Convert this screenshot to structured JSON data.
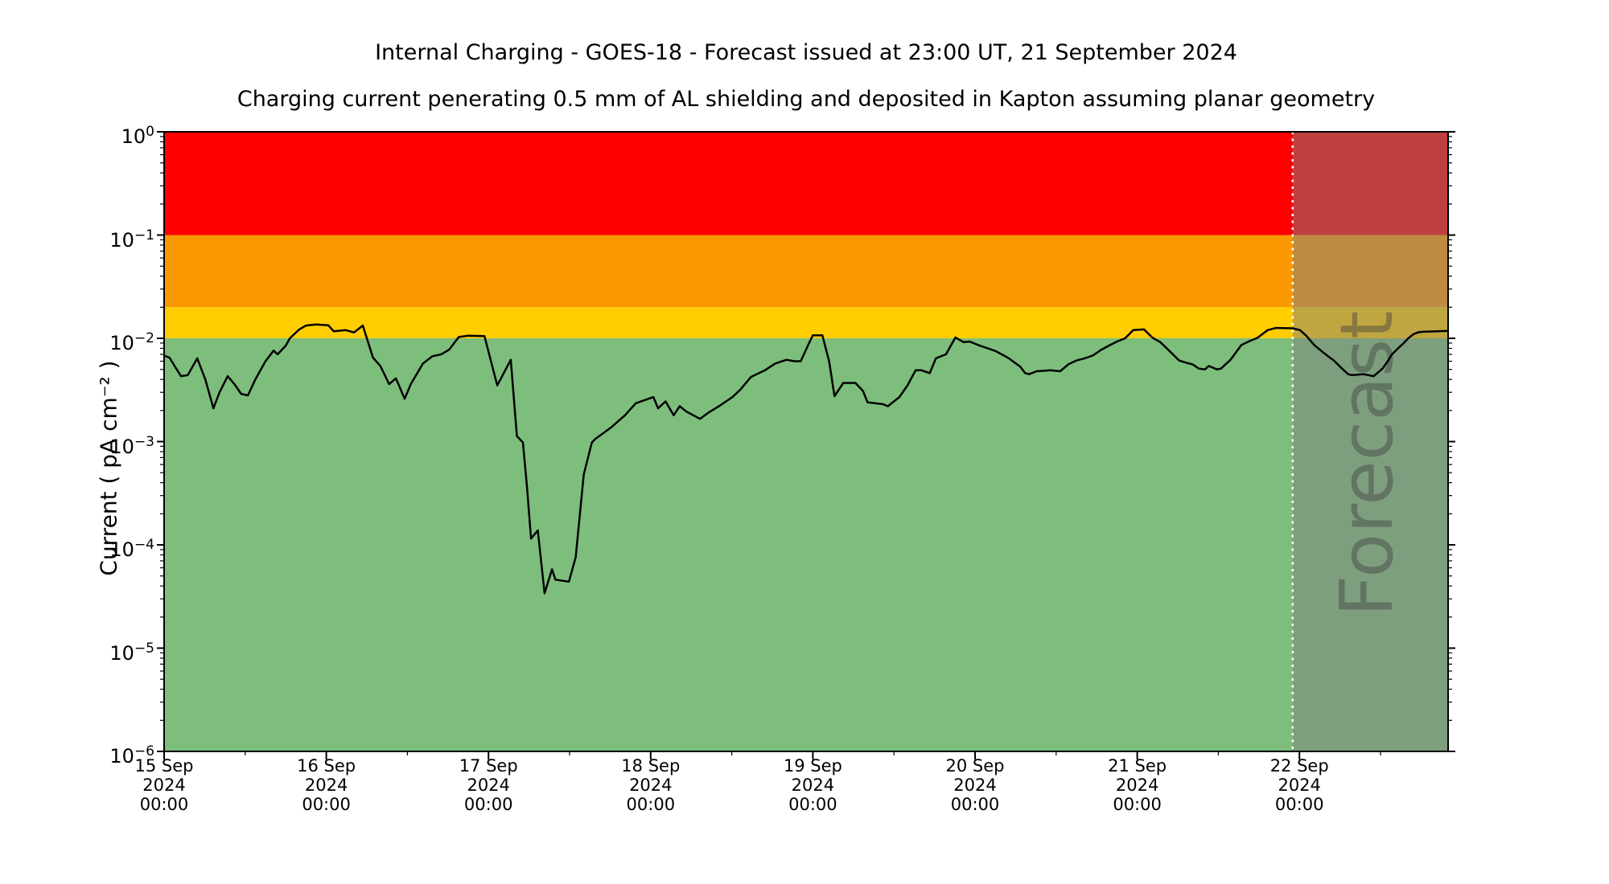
{
  "chart_data": {
    "type": "line",
    "title": "Internal Charging - GOES-18 - Forecast issued at 23:00 UT, 21 September 2024",
    "subtitle": "Charging current penerating 0.5 mm of AL shielding and deposited in Kapton assuming planar geometry",
    "ylabel": "Current ( pA cm⁻² )",
    "y_axis": {
      "scale": "log",
      "min": 1e-06,
      "max": 1,
      "tick_exponents": [
        "0",
        "−1",
        "−2",
        "−3",
        "−4",
        "−5",
        "−6"
      ]
    },
    "x_axis": {
      "hours_total": 190,
      "major_tick_hours": 24,
      "minor_tick_hours": 12,
      "tick_labels": [
        {
          "day": "15 Sep",
          "year": "2024",
          "time": "00:00"
        },
        {
          "day": "16 Sep",
          "year": "2024",
          "time": "00:00"
        },
        {
          "day": "17 Sep",
          "year": "2024",
          "time": "00:00"
        },
        {
          "day": "18 Sep",
          "year": "2024",
          "time": "00:00"
        },
        {
          "day": "19 Sep",
          "year": "2024",
          "time": "00:00"
        },
        {
          "day": "20 Sep",
          "year": "2024",
          "time": "00:00"
        },
        {
          "day": "21 Sep",
          "year": "2024",
          "time": "00:00"
        },
        {
          "day": "22 Sep",
          "year": "2024",
          "time": "00:00"
        }
      ]
    },
    "bands": [
      {
        "label": "alert-red",
        "min": 0.1,
        "max": 1,
        "color": "#FF0000"
      },
      {
        "label": "warning-orange",
        "min": 0.02,
        "max": 0.1,
        "color": "#FB9902"
      },
      {
        "label": "caution-yellow",
        "min": 0.01,
        "max": 0.02,
        "color": "#FFCD00"
      },
      {
        "label": "nominal-green",
        "min": 1e-06,
        "max": 0.01,
        "color": "#7DBE7D"
      }
    ],
    "forecast": {
      "label": "Forecast",
      "start_hour": 167,
      "end_hour": 190,
      "overlay_color": "#7F7F7F",
      "overlay_opacity": 0.5,
      "divider_color": "#FFFFFF",
      "text_color": "#404040",
      "text_opacity": 0.45
    },
    "series": [
      {
        "name": "charging-current",
        "color": "#000000",
        "points": [
          [
            0,
            0.0068
          ],
          [
            0.8,
            0.0065
          ],
          [
            1.7,
            0.0052
          ],
          [
            2.5,
            0.0043
          ],
          [
            3.5,
            0.0044
          ],
          [
            4.9,
            0.0064
          ],
          [
            6.1,
            0.004
          ],
          [
            7.3,
            0.0021
          ],
          [
            8.2,
            0.003
          ],
          [
            9.4,
            0.0043
          ],
          [
            10.4,
            0.0036
          ],
          [
            11.4,
            0.0029
          ],
          [
            12.4,
            0.0028
          ],
          [
            13.5,
            0.004
          ],
          [
            15,
            0.006
          ],
          [
            16.2,
            0.0076
          ],
          [
            16.8,
            0.007
          ],
          [
            18,
            0.0085
          ],
          [
            18.6,
            0.01
          ],
          [
            20,
            0.0122
          ],
          [
            21,
            0.0133
          ],
          [
            22.5,
            0.0136
          ],
          [
            24.3,
            0.0134
          ],
          [
            25.1,
            0.0117
          ],
          [
            26.9,
            0.012
          ],
          [
            28.1,
            0.0114
          ],
          [
            29.4,
            0.0133
          ],
          [
            30.9,
            0.0065
          ],
          [
            32,
            0.0054
          ],
          [
            33.3,
            0.0036
          ],
          [
            34.3,
            0.0041
          ],
          [
            35.6,
            0.0026
          ],
          [
            36.5,
            0.0036
          ],
          [
            38.3,
            0.0057
          ],
          [
            39.7,
            0.0067
          ],
          [
            41,
            0.007
          ],
          [
            42.2,
            0.0078
          ],
          [
            43.6,
            0.0103
          ],
          [
            45,
            0.0106
          ],
          [
            47.4,
            0.0105
          ],
          [
            49.3,
            0.0035
          ],
          [
            51.3,
            0.0062
          ],
          [
            52.2,
            0.00113
          ],
          [
            53.1,
            0.00098
          ],
          [
            53.7,
            0.00036
          ],
          [
            54.3,
            0.000115
          ],
          [
            55.3,
            0.000138
          ],
          [
            56.3,
            3.4e-05
          ],
          [
            57.4,
            5.8e-05
          ],
          [
            57.9,
            4.6e-05
          ],
          [
            59.9,
            4.4e-05
          ],
          [
            60.9,
            7.6e-05
          ],
          [
            62.1,
            0.00048
          ],
          [
            63.3,
            0.00098
          ],
          [
            63.8,
            0.00106
          ],
          [
            66.2,
            0.00138
          ],
          [
            68.2,
            0.0018
          ],
          [
            69.8,
            0.00235
          ],
          [
            72.4,
            0.0027
          ],
          [
            73.1,
            0.0021
          ],
          [
            74.2,
            0.00245
          ],
          [
            75.4,
            0.0018
          ],
          [
            76.3,
            0.0022
          ],
          [
            77.3,
            0.00195
          ],
          [
            79.3,
            0.00166
          ],
          [
            80.5,
            0.0019
          ],
          [
            82.1,
            0.0022
          ],
          [
            84.1,
            0.0027
          ],
          [
            85.3,
            0.0032
          ],
          [
            86.8,
            0.0042
          ],
          [
            87.4,
            0.0044
          ],
          [
            88.9,
            0.0049
          ],
          [
            90.4,
            0.0057
          ],
          [
            92.1,
            0.0062
          ],
          [
            93.3,
            0.006
          ],
          [
            94.2,
            0.006
          ],
          [
            95.4,
            0.0089
          ],
          [
            96,
            0.0107
          ],
          [
            97.4,
            0.0107
          ],
          [
            98.4,
            0.006
          ],
          [
            99.2,
            0.00275
          ],
          [
            100.5,
            0.0037
          ],
          [
            102.3,
            0.0037
          ],
          [
            103.4,
            0.0031
          ],
          [
            104.1,
            0.0024
          ],
          [
            106.4,
            0.0023
          ],
          [
            107.1,
            0.0022
          ],
          [
            108.8,
            0.0027
          ],
          [
            110,
            0.0035
          ],
          [
            111.2,
            0.0049
          ],
          [
            112.1,
            0.0049
          ],
          [
            113.3,
            0.0046
          ],
          [
            114.2,
            0.0064
          ],
          [
            115.7,
            0.007
          ],
          [
            117.1,
            0.0102
          ],
          [
            118.3,
            0.0092
          ],
          [
            119.2,
            0.0093
          ],
          [
            120.7,
            0.0085
          ],
          [
            121.9,
            0.008
          ],
          [
            123.1,
            0.0075
          ],
          [
            124.3,
            0.0068
          ],
          [
            125,
            0.0064
          ],
          [
            126.7,
            0.0053
          ],
          [
            127.4,
            0.0046
          ],
          [
            128,
            0.0045
          ],
          [
            129.1,
            0.0048
          ],
          [
            131.2,
            0.0049
          ],
          [
            132.6,
            0.0048
          ],
          [
            133.8,
            0.0056
          ],
          [
            135,
            0.0061
          ],
          [
            136.2,
            0.0064
          ],
          [
            137.4,
            0.0068
          ],
          [
            138.6,
            0.0077
          ],
          [
            139.8,
            0.0085
          ],
          [
            141,
            0.0093
          ],
          [
            142.2,
            0.01
          ],
          [
            143.4,
            0.012
          ],
          [
            145,
            0.0122
          ],
          [
            146.2,
            0.0102
          ],
          [
            147.4,
            0.0092
          ],
          [
            149,
            0.0073
          ],
          [
            150.2,
            0.0061
          ],
          [
            151.3,
            0.0058
          ],
          [
            152.2,
            0.0056
          ],
          [
            153.1,
            0.0051
          ],
          [
            154,
            0.005
          ],
          [
            154.6,
            0.0054
          ],
          [
            155.8,
            0.005
          ],
          [
            156.4,
            0.0051
          ],
          [
            157.8,
            0.0062
          ],
          [
            159.4,
            0.0086
          ],
          [
            160.6,
            0.0094
          ],
          [
            161.8,
            0.0101
          ],
          [
            163.3,
            0.012
          ],
          [
            164.5,
            0.0126
          ],
          [
            167,
            0.0125
          ],
          [
            168.1,
            0.012
          ],
          [
            169,
            0.0106
          ],
          [
            170.2,
            0.0086
          ],
          [
            171.4,
            0.0074
          ],
          [
            172.5,
            0.0065
          ],
          [
            173.1,
            0.0061
          ],
          [
            174.3,
            0.0051
          ],
          [
            175.2,
            0.0045
          ],
          [
            175.8,
            0.0044
          ],
          [
            177.5,
            0.0045
          ],
          [
            179,
            0.0043
          ],
          [
            180.3,
            0.0051
          ],
          [
            180.9,
            0.0058
          ],
          [
            181.7,
            0.007
          ],
          [
            182.5,
            0.0079
          ],
          [
            183.3,
            0.0088
          ],
          [
            184.1,
            0.01
          ],
          [
            184.9,
            0.011
          ],
          [
            185.7,
            0.0115
          ],
          [
            186.5,
            0.0116
          ],
          [
            190,
            0.0118
          ]
        ]
      }
    ]
  }
}
